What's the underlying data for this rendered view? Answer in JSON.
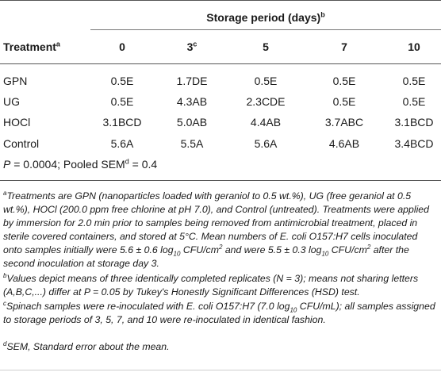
{
  "table": {
    "group_header": "Storage period (days)",
    "group_header_sup": "b",
    "treatment_header": "Treatment",
    "treatment_header_sup": "a",
    "columns": [
      {
        "label": "0",
        "sup": ""
      },
      {
        "label": "3",
        "sup": "c"
      },
      {
        "label": "5",
        "sup": ""
      },
      {
        "label": "7",
        "sup": ""
      },
      {
        "label": "10",
        "sup": ""
      }
    ],
    "rows": [
      {
        "treatment": "GPN",
        "values": [
          "0.5E",
          "1.7DE",
          "0.5E",
          "0.5E",
          "0.5E"
        ]
      },
      {
        "treatment": "UG",
        "values": [
          "0.5E",
          "4.3AB",
          "2.3CDE",
          "0.5E",
          "0.5E"
        ]
      },
      {
        "treatment": "HOCl",
        "values": [
          "3.1BCD",
          "5.0AB",
          "4.4AB",
          "3.7ABC",
          "3.1BCD"
        ]
      },
      {
        "treatment": "Control",
        "values": [
          "5.6A",
          "5.5A",
          "5.6A",
          "4.6AB",
          "3.4BCD"
        ]
      }
    ],
    "stats": {
      "p_label": "P",
      "p_value": " = 0.0004; Pooled SEM",
      "sem_sup": "d",
      "sem_value": " = 0.4"
    }
  },
  "footnotes": {
    "a": {
      "sup": "a",
      "part1": "Treatments are GPN (nanoparticles loaded with geraniol to 0.5 wt.%), UG (free geraniol at 0.5 wt.%), HOCl (200.0 ppm free chlorine at pH 7.0), and Control (untreated). Treatments were applied by immersion for 2.0 min prior to samples being removed from antimicrobial treatment, placed in sterile covered containers, and stored at 5°C. Mean numbers of E. coli O157:H7 cells inoculated onto samples initially were 5.6 ± 0.6 log",
      "sub1": "10",
      "part2": " CFU/cm",
      "sup1": "2",
      "part3": " and were 5.5 ± 0.3 log",
      "sub2": "10",
      "part4": " CFU/cm",
      "sup2": "2",
      "part5": " after the second inoculation at storage day 3."
    },
    "b": {
      "sup": "b",
      "text": "Values depict means of three identically completed replicates (N = 3); means not sharing letters (A,B,C,...) differ at P = 0.05 by Tukey's Honestly Significant Differences (HSD) test."
    },
    "c": {
      "sup": "c",
      "text": "Spinach samples were re-inoculated with E. coli O157:H7 (7.0 log",
      "sub": "10",
      "text2": " CFU/mL); all samples assigned to storage periods of 3, 5, 7, and 10 were re-inoculated in identical fashion."
    },
    "d": {
      "sup": "d",
      "text": "SEM, Standard error about the mean."
    }
  }
}
